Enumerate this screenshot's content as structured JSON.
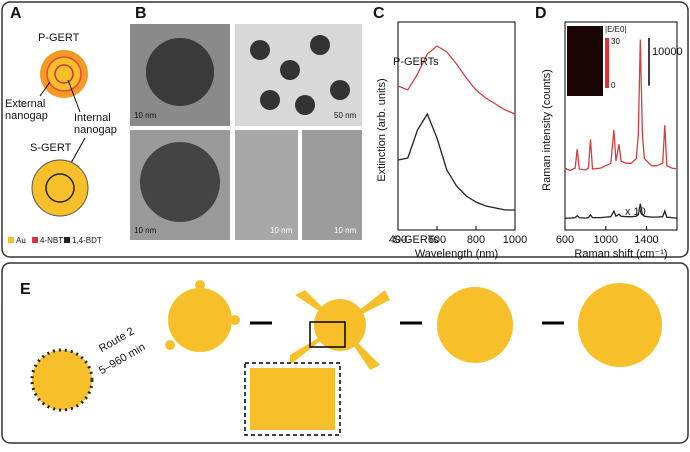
{
  "panels": {
    "a": {
      "label": "A",
      "p_gert": "P-GERT",
      "external": [
        "External",
        "nanogap"
      ],
      "internal": [
        "Internal",
        "nanogap"
      ],
      "s_gert": "S-GERT",
      "legend": [
        "Au",
        "4-NBT",
        "1,4-BDT"
      ]
    },
    "b": {
      "label": "B",
      "scale_bars": [
        "10 nm",
        "50 nm",
        "10 nm",
        "10 nm",
        "10 nm"
      ]
    },
    "e": {
      "label": "E",
      "route": "Route 2",
      "time": "5–960 min"
    }
  },
  "chart_data": [
    {
      "type": "line",
      "label": "C",
      "xlabel": "Wavelength (nm)",
      "ylabel": "Extinction (arb. units)",
      "x": [
        400,
        450,
        500,
        550,
        600,
        650,
        700,
        750,
        800,
        850,
        900,
        950,
        1000
      ],
      "series": [
        {
          "name": "P-GERTs",
          "color": "#d04040",
          "values": [
            0.72,
            0.7,
            0.78,
            0.88,
            0.92,
            0.89,
            0.83,
            0.76,
            0.7,
            0.66,
            0.63,
            0.6,
            0.58
          ]
        },
        {
          "name": "S-GERTs",
          "color": "#222222",
          "values": [
            0.35,
            0.36,
            0.5,
            0.58,
            0.46,
            0.3,
            0.22,
            0.17,
            0.14,
            0.12,
            0.11,
            0.1,
            0.1
          ]
        }
      ],
      "xlim": [
        400,
        1000
      ],
      "xticks": [
        400,
        600,
        800,
        1000
      ],
      "ylim": [
        0,
        1
      ]
    },
    {
      "type": "line",
      "label": "D",
      "xlabel": "Raman shift (cm⁻¹)",
      "ylabel": "Raman intensity (counts)",
      "x": [
        600,
        650,
        700,
        720,
        740,
        800,
        830,
        850,
        870,
        950,
        1000,
        1050,
        1080,
        1100,
        1130,
        1150,
        1200,
        1250,
        1300,
        1320,
        1340,
        1360,
        1380,
        1450,
        1500,
        1560,
        1580,
        1600,
        1650,
        1700
      ],
      "series": [
        {
          "name": null,
          "color": "#d04040",
          "values": [
            13000,
            12500,
            13000,
            17000,
            12800,
            12600,
            13000,
            19000,
            12800,
            13000,
            13500,
            14000,
            21000,
            14500,
            18000,
            14500,
            14000,
            14000,
            15000,
            20000,
            40000,
            20000,
            15000,
            13500,
            13500,
            14000,
            22000,
            13500,
            13000,
            12800
          ]
        },
        {
          "name": null,
          "color": "#222222",
          "values": [
            2500,
            2500,
            2600,
            3000,
            2600,
            2500,
            2600,
            3200,
            2600,
            2600,
            2700,
            2800,
            4000,
            2900,
            3300,
            2900,
            2800,
            2800,
            2900,
            3200,
            5500,
            3200,
            2900,
            2700,
            2700,
            2800,
            4000,
            2700,
            2600,
            2500
          ]
        }
      ],
      "xlim": [
        600,
        1700
      ],
      "xticks": [
        600,
        1000,
        1400
      ],
      "ylim": [
        0,
        42000
      ],
      "scale_bar": 10000,
      "multiplier": "x 10",
      "inset": {
        "title": "|E/E0|",
        "max": "30",
        "min": "0"
      }
    }
  ]
}
